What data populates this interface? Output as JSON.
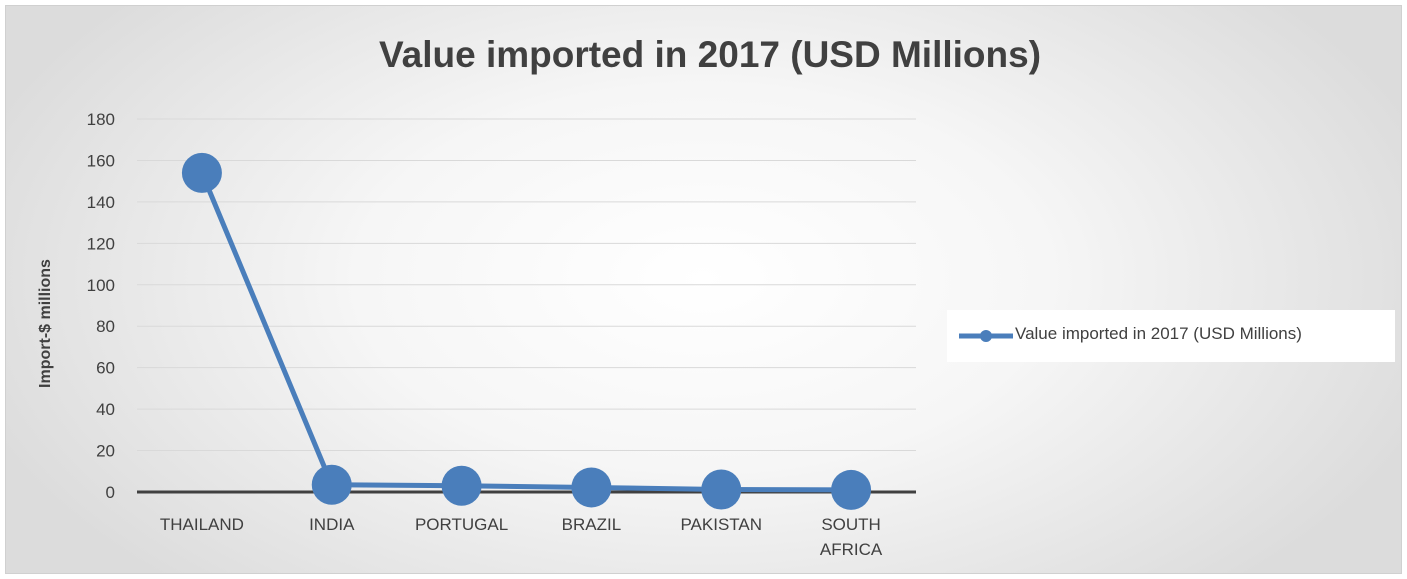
{
  "chart_data": {
    "type": "line",
    "title": "Value imported in 2017 (USD Millions)",
    "xlabel": "",
    "ylabel": "Import-$ millions",
    "categories": [
      "THAILAND",
      "INDIA",
      "PORTUGAL",
      "BRAZIL",
      "PAKISTAN",
      "SOUTH AFRICA"
    ],
    "series": [
      {
        "name": "Value imported in 2017 (USD Millions)",
        "values": [
          154,
          3.5,
          3.0,
          2.2,
          1.2,
          1.0
        ],
        "color": "#4a7ebb"
      }
    ],
    "ylim": [
      0,
      180
    ],
    "yticks": [
      "0",
      "20",
      "40",
      "60",
      "80",
      "100",
      "120",
      "140",
      "160",
      "180"
    ],
    "grid": true,
    "legend": "right"
  }
}
